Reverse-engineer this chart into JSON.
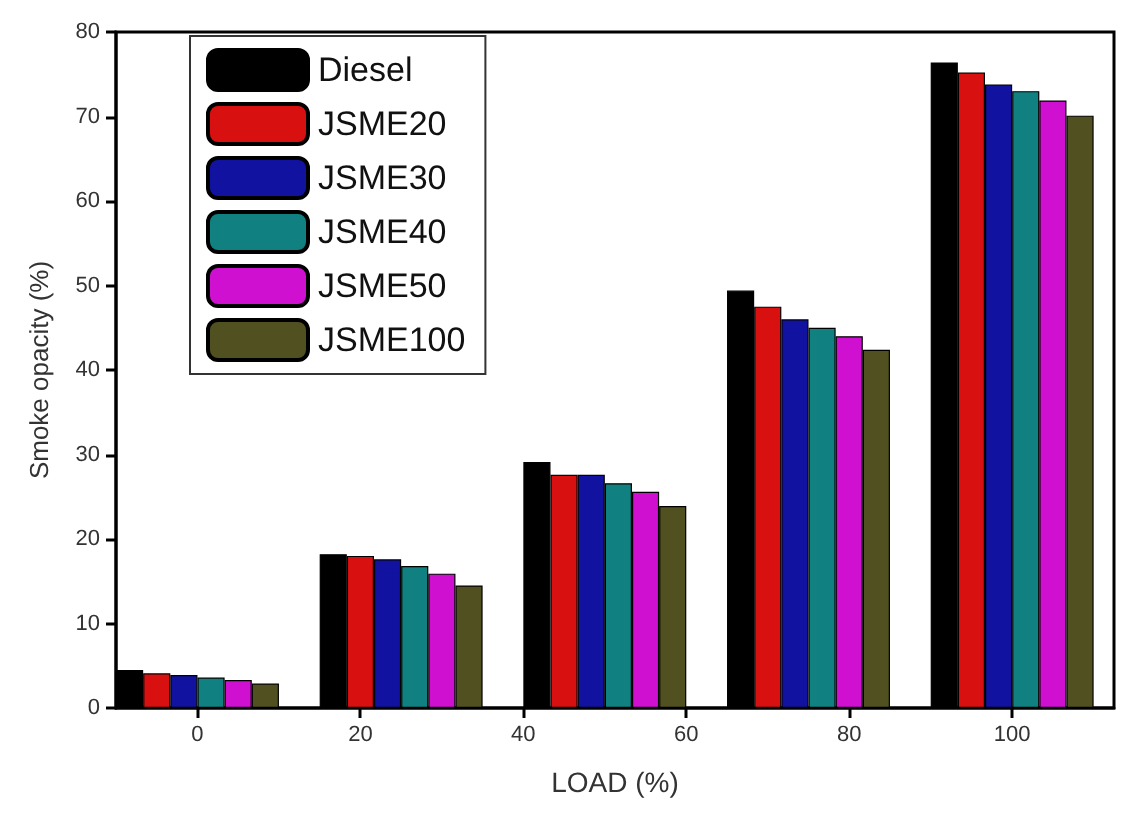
{
  "chart_data": {
    "type": "bar",
    "xlabel": "LOAD (%)",
    "ylabel": "Smoke opacity (%)",
    "x": [
      0,
      25,
      50,
      75,
      100
    ],
    "series": [
      {
        "name": "Diesel",
        "color": "#000000",
        "values": [
          4.5,
          18.2,
          29.1,
          49.4,
          76.4
        ]
      },
      {
        "name": "JSME20",
        "color": "#d81010",
        "values": [
          4.1,
          18.0,
          27.6,
          47.5,
          75.2
        ]
      },
      {
        "name": "JSME30",
        "color": "#1212a0",
        "values": [
          3.9,
          17.6,
          27.6,
          46.0,
          73.8
        ]
      },
      {
        "name": "JSME40",
        "color": "#108080",
        "values": [
          3.6,
          16.8,
          26.6,
          45.0,
          73.0
        ]
      },
      {
        "name": "JSME50",
        "color": "#d010d0",
        "values": [
          3.3,
          15.9,
          25.6,
          44.0,
          71.9
        ]
      },
      {
        "name": "JSME100",
        "color": "#505020",
        "values": [
          2.9,
          14.5,
          23.9,
          42.4,
          70.1
        ]
      }
    ],
    "xlim": [
      -10,
      112.5
    ],
    "xticks": [
      0,
      20,
      40,
      60,
      80,
      100
    ],
    "ylim": [
      0,
      80
    ],
    "yticks": [
      0,
      10,
      20,
      30,
      40,
      50,
      60,
      70,
      80
    ],
    "grid": false,
    "legend": "top left"
  }
}
